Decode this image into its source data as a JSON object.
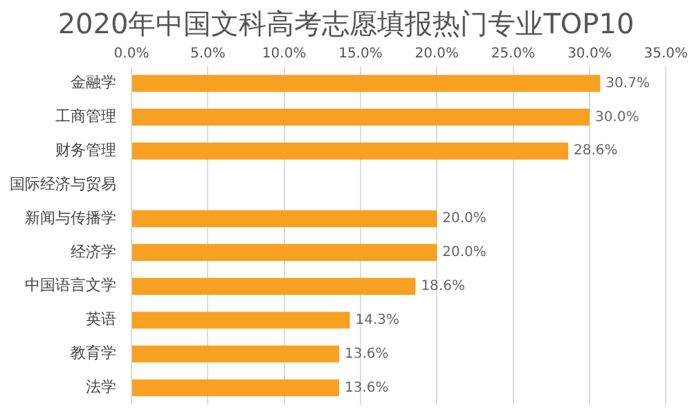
{
  "chart_data": {
    "type": "bar",
    "orientation": "horizontal",
    "title": "2020年中国文科高考志愿填报热门专业TOP10",
    "categories": [
      "金融学",
      "工商管理",
      "财务管理",
      "国际经济与贸易",
      "新闻与传播学",
      "经济学",
      "中国语言文学",
      "英语",
      "教育学",
      "法学"
    ],
    "values": [
      30.7,
      30.0,
      28.6,
      null,
      20.0,
      20.0,
      18.6,
      14.3,
      13.6,
      13.6
    ],
    "value_labels": [
      "30.7%",
      "30.0%",
      "28.6%",
      null,
      "20.0%",
      "20.0%",
      "18.6%",
      "14.3%",
      "13.6%",
      "13.6%"
    ],
    "color": "#f7a021",
    "xlim": [
      0,
      35
    ],
    "xticks": [
      {
        "value": 0,
        "label": "0.0%"
      },
      {
        "value": 5,
        "label": "5.0%"
      },
      {
        "value": 10,
        "label": "10.0%"
      },
      {
        "value": 15,
        "label": "15.0%"
      },
      {
        "value": 20,
        "label": "20.0%"
      },
      {
        "value": 25,
        "label": "25.0%"
      },
      {
        "value": 30,
        "label": "30.0%"
      },
      {
        "value": 35,
        "label": "35.0%"
      }
    ],
    "grid": "x",
    "legend": false
  }
}
